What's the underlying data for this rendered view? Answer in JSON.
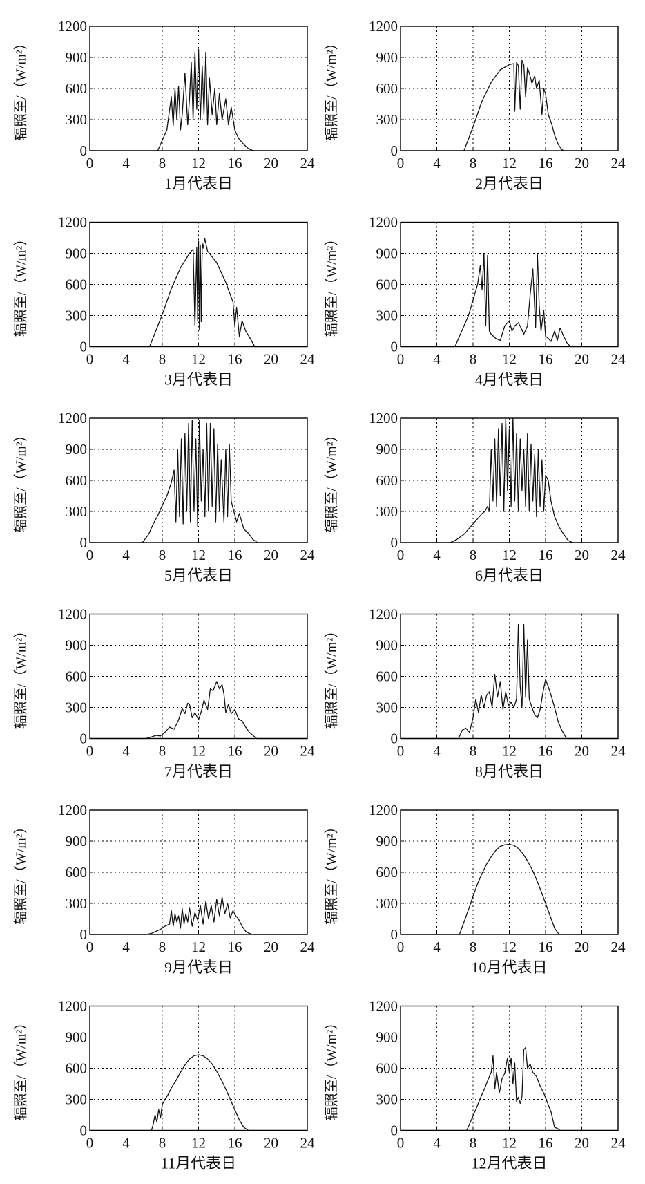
{
  "y_axis_label": "辐照至/（W/m²）",
  "chart_data": [
    {
      "type": "line",
      "caption": "1月代表日",
      "xlim": [
        0,
        24
      ],
      "ylim": [
        0,
        1200
      ],
      "xticks": [
        0,
        4,
        8,
        12,
        16,
        20,
        24
      ],
      "yticks": [
        0,
        300,
        600,
        900,
        1200
      ],
      "grid": true,
      "x": [
        0,
        7.5,
        8,
        8.5,
        9,
        9.2,
        9.4,
        9.6,
        9.8,
        10,
        10.2,
        10.5,
        10.8,
        11,
        11.2,
        11.4,
        11.6,
        11.8,
        12,
        12.2,
        12.4,
        12.6,
        12.8,
        13,
        13.2,
        13.5,
        13.8,
        14,
        14.3,
        14.6,
        15,
        15.3,
        15.6,
        16,
        16.4,
        17,
        17.5,
        18,
        24
      ],
      "y": [
        0,
        0,
        100,
        200,
        520,
        240,
        600,
        300,
        620,
        200,
        350,
        750,
        250,
        500,
        850,
        300,
        950,
        400,
        980,
        300,
        820,
        350,
        950,
        250,
        700,
        350,
        600,
        250,
        550,
        300,
        500,
        250,
        420,
        200,
        120,
        60,
        20,
        0,
        0
      ]
    },
    {
      "type": "line",
      "caption": "2月代表日",
      "xlim": [
        0,
        24
      ],
      "ylim": [
        0,
        1200
      ],
      "xticks": [
        0,
        4,
        8,
        12,
        16,
        20,
        24
      ],
      "yticks": [
        0,
        300,
        600,
        900,
        1200
      ],
      "grid": true,
      "x": [
        0,
        7,
        8,
        9,
        10,
        11,
        12,
        12.5,
        12.6,
        12.8,
        13,
        13.2,
        13.4,
        13.6,
        13.8,
        14,
        14.2,
        14.5,
        14.8,
        15,
        15.3,
        15.6,
        15.8,
        16,
        16.3,
        16.7,
        17,
        17.4,
        17.8,
        18,
        24
      ],
      "y": [
        0,
        0,
        230,
        480,
        660,
        780,
        830,
        840,
        380,
        850,
        820,
        400,
        870,
        830,
        520,
        800,
        750,
        650,
        720,
        600,
        680,
        350,
        600,
        550,
        350,
        250,
        150,
        60,
        10,
        0,
        0
      ]
    },
    {
      "type": "line",
      "caption": "3月代表日",
      "xlim": [
        0,
        24
      ],
      "ylim": [
        0,
        1200
      ],
      "xticks": [
        0,
        4,
        8,
        12,
        16,
        20,
        24
      ],
      "yticks": [
        0,
        300,
        600,
        900,
        1200
      ],
      "grid": true,
      "x": [
        0,
        6.6,
        8,
        9,
        10,
        11,
        11.4,
        11.6,
        11.8,
        11.9,
        12,
        12.1,
        12.2,
        12.3,
        12.4,
        12.5,
        12.7,
        13,
        14,
        15,
        15.8,
        16,
        16.2,
        16.5,
        16.8,
        17.2,
        17.7,
        18.2,
        24
      ],
      "y": [
        0,
        0,
        310,
        560,
        760,
        900,
        940,
        200,
        960,
        250,
        1020,
        160,
        980,
        240,
        1000,
        950,
        1040,
        920,
        810,
        620,
        430,
        200,
        380,
        100,
        250,
        150,
        80,
        0,
        0
      ]
    },
    {
      "type": "line",
      "caption": "4月代表日",
      "xlim": [
        0,
        24
      ],
      "ylim": [
        0,
        1200
      ],
      "xticks": [
        0,
        4,
        8,
        12,
        16,
        20,
        24
      ],
      "yticks": [
        0,
        300,
        600,
        900,
        1200
      ],
      "grid": true,
      "x": [
        0,
        6,
        6.5,
        7,
        7.5,
        8,
        8.5,
        8.8,
        9,
        9.2,
        9.4,
        9.6,
        9.8,
        10,
        10.5,
        11,
        11.5,
        12,
        12.3,
        12.6,
        13,
        13.3,
        13.6,
        14,
        14.3,
        14.6,
        14.9,
        15.1,
        15.3,
        15.5,
        15.8,
        16,
        16.3,
        16.6,
        17,
        17.3,
        17.6,
        18,
        18.4,
        18.8,
        24
      ],
      "y": [
        0,
        0,
        100,
        200,
        300,
        450,
        600,
        780,
        550,
        900,
        200,
        880,
        150,
        120,
        80,
        60,
        200,
        250,
        150,
        200,
        230,
        180,
        120,
        200,
        500,
        750,
        180,
        900,
        400,
        150,
        350,
        100,
        80,
        50,
        150,
        60,
        180,
        100,
        30,
        0,
        0
      ]
    },
    {
      "type": "line",
      "caption": "5月代表日",
      "xlim": [
        0,
        24
      ],
      "ylim": [
        0,
        1200
      ],
      "xticks": [
        0,
        4,
        8,
        12,
        16,
        20,
        24
      ],
      "yticks": [
        0,
        300,
        600,
        900,
        1200
      ],
      "grid": true,
      "x": [
        0,
        5.8,
        6.5,
        7,
        7.5,
        8,
        8.5,
        9,
        9.3,
        9.5,
        9.7,
        9.9,
        10.1,
        10.3,
        10.5,
        10.7,
        10.9,
        11.1,
        11.3,
        11.5,
        11.7,
        11.9,
        12.1,
        12.3,
        12.5,
        12.7,
        12.9,
        13.1,
        13.3,
        13.5,
        13.7,
        13.9,
        14.1,
        14.3,
        14.5,
        14.8,
        15,
        15.2,
        15.4,
        15.6,
        15.9,
        16.2,
        16.5,
        17,
        17.5,
        18,
        18.5,
        24
      ],
      "y": [
        0,
        0,
        80,
        180,
        260,
        360,
        450,
        580,
        700,
        200,
        900,
        250,
        1000,
        180,
        1050,
        300,
        1150,
        200,
        1180,
        300,
        1000,
        150,
        1180,
        400,
        900,
        250,
        1150,
        300,
        1150,
        350,
        1100,
        200,
        950,
        300,
        800,
        200,
        900,
        250,
        950,
        400,
        300,
        200,
        280,
        130,
        90,
        30,
        0,
        0
      ]
    },
    {
      "type": "line",
      "caption": "6月代表日",
      "xlim": [
        0,
        24
      ],
      "ylim": [
        0,
        1200
      ],
      "xticks": [
        0,
        4,
        8,
        12,
        16,
        20,
        24
      ],
      "yticks": [
        0,
        300,
        600,
        900,
        1200
      ],
      "grid": true,
      "x": [
        0,
        5.5,
        6.2,
        7,
        7.5,
        8,
        8.5,
        9,
        9.3,
        9.6,
        9.8,
        10,
        10.2,
        10.4,
        10.6,
        10.8,
        11,
        11.2,
        11.4,
        11.6,
        11.8,
        12,
        12.2,
        12.4,
        12.6,
        12.8,
        13,
        13.2,
        13.4,
        13.6,
        13.8,
        14,
        14.2,
        14.4,
        14.6,
        14.8,
        15,
        15.2,
        15.4,
        15.6,
        15.8,
        16,
        16.3,
        16.6,
        17,
        17.5,
        18,
        18.5,
        19,
        24
      ],
      "y": [
        0,
        0,
        30,
        80,
        130,
        180,
        230,
        280,
        300,
        350,
        300,
        900,
        400,
        1000,
        350,
        1100,
        450,
        1150,
        300,
        1200,
        500,
        1100,
        350,
        1200,
        400,
        1050,
        300,
        1000,
        500,
        900,
        350,
        1050,
        300,
        950,
        400,
        850,
        250,
        900,
        350,
        800,
        300,
        650,
        600,
        400,
        250,
        150,
        80,
        20,
        0,
        0
      ]
    },
    {
      "type": "line",
      "caption": "7月代表日",
      "xlim": [
        0,
        24
      ],
      "ylim": [
        0,
        1200
      ],
      "xticks": [
        0,
        4,
        8,
        12,
        16,
        20,
        24
      ],
      "yticks": [
        0,
        300,
        600,
        900,
        1200
      ],
      "grid": true,
      "x": [
        0,
        6.2,
        6.8,
        7.3,
        7.8,
        8.3,
        8.8,
        9.3,
        9.8,
        10.2,
        10.5,
        10.8,
        11,
        11.3,
        11.6,
        12,
        12.3,
        12.6,
        13,
        13.3,
        13.6,
        14,
        14.3,
        14.6,
        14.8,
        15,
        15.3,
        15.6,
        16,
        16.4,
        16.8,
        17.2,
        17.6,
        18,
        18.4,
        24
      ],
      "y": [
        0,
        0,
        15,
        30,
        25,
        60,
        110,
        90,
        180,
        290,
        240,
        340,
        330,
        200,
        250,
        180,
        260,
        370,
        280,
        480,
        460,
        550,
        480,
        520,
        430,
        250,
        330,
        240,
        280,
        190,
        170,
        110,
        60,
        30,
        0,
        0
      ]
    },
    {
      "type": "line",
      "caption": "8月代表日",
      "xlim": [
        0,
        24
      ],
      "ylim": [
        0,
        1200
      ],
      "xticks": [
        0,
        4,
        8,
        12,
        16,
        20,
        24
      ],
      "yticks": [
        0,
        300,
        600,
        900,
        1200
      ],
      "grid": true,
      "x": [
        0,
        6.4,
        6.8,
        7.2,
        7.6,
        8,
        8.3,
        8.6,
        8.9,
        9.2,
        9.5,
        9.8,
        10.1,
        10.4,
        10.7,
        11,
        11.3,
        11.6,
        11.9,
        12.2,
        12.5,
        12.8,
        13,
        13.2,
        13.4,
        13.6,
        13.8,
        14,
        14.2,
        14.5,
        14.8,
        15.1,
        15.4,
        15.7,
        16,
        16.3,
        16.6,
        17,
        17.4,
        17.8,
        18.3,
        24
      ],
      "y": [
        0,
        0,
        80,
        100,
        60,
        200,
        380,
        250,
        420,
        300,
        420,
        450,
        300,
        620,
        400,
        550,
        280,
        450,
        320,
        350,
        300,
        380,
        1100,
        500,
        300,
        1100,
        400,
        950,
        380,
        300,
        230,
        200,
        280,
        440,
        570,
        500,
        420,
        300,
        160,
        80,
        0,
        0
      ]
    },
    {
      "type": "line",
      "caption": "9月代表日",
      "xlim": [
        0,
        24
      ],
      "ylim": [
        0,
        1200
      ],
      "xticks": [
        0,
        4,
        8,
        12,
        16,
        20,
        24
      ],
      "yticks": [
        0,
        300,
        600,
        900,
        1200
      ],
      "grid": true,
      "x": [
        0,
        6.2,
        6.8,
        7.3,
        7.8,
        8.3,
        8.8,
        9,
        9.2,
        9.4,
        9.6,
        9.8,
        10,
        10.2,
        10.4,
        10.6,
        10.8,
        11,
        11.3,
        11.6,
        11.9,
        12.2,
        12.5,
        12.8,
        13.1,
        13.4,
        13.7,
        14,
        14.3,
        14.6,
        14.9,
        15.2,
        15.5,
        15.8,
        16.1,
        16.4,
        16.8,
        17.2,
        17.6,
        18,
        24
      ],
      "y": [
        0,
        0,
        10,
        30,
        50,
        80,
        100,
        230,
        80,
        200,
        120,
        180,
        60,
        250,
        100,
        200,
        120,
        260,
        80,
        210,
        140,
        280,
        100,
        320,
        150,
        280,
        120,
        340,
        180,
        360,
        200,
        300,
        160,
        230,
        180,
        150,
        80,
        30,
        10,
        0,
        0
      ]
    },
    {
      "type": "line",
      "caption": "10月代表日",
      "xlim": [
        0,
        24
      ],
      "ylim": [
        0,
        1200
      ],
      "xticks": [
        0,
        4,
        8,
        12,
        16,
        20,
        24
      ],
      "yticks": [
        0,
        300,
        600,
        900,
        1200
      ],
      "grid": true,
      "x": [
        0,
        6.5,
        7,
        7.5,
        8,
        8.5,
        9,
        9.5,
        10,
        10.5,
        11,
        11.5,
        12,
        12.5,
        13,
        13.5,
        14,
        14.5,
        15,
        15.5,
        16,
        16.5,
        17,
        17.5,
        24
      ],
      "y": [
        0,
        0,
        120,
        240,
        370,
        490,
        590,
        680,
        750,
        810,
        850,
        865,
        870,
        860,
        830,
        780,
        710,
        630,
        530,
        420,
        300,
        180,
        60,
        0,
        0
      ]
    },
    {
      "type": "line",
      "caption": "11月代表日",
      "xlim": [
        0,
        24
      ],
      "ylim": [
        0,
        1200
      ],
      "xticks": [
        0,
        4,
        8,
        12,
        16,
        20,
        24
      ],
      "yticks": [
        0,
        300,
        600,
        900,
        1200
      ],
      "grid": true,
      "x": [
        0,
        6.8,
        7,
        7.2,
        7.4,
        7.6,
        7.8,
        8,
        8.3,
        8.6,
        9,
        9.5,
        10,
        10.5,
        11,
        11.5,
        12,
        12.5,
        13,
        13.5,
        14,
        14.5,
        15,
        15.5,
        16,
        16.5,
        17,
        17.5,
        24
      ],
      "y": [
        0,
        0,
        60,
        150,
        80,
        200,
        120,
        250,
        300,
        340,
        410,
        480,
        560,
        630,
        690,
        720,
        730,
        720,
        690,
        640,
        570,
        490,
        400,
        300,
        200,
        100,
        30,
        0,
        0
      ]
    },
    {
      "type": "line",
      "caption": "12月代表日",
      "xlim": [
        0,
        24
      ],
      "ylim": [
        0,
        1200
      ],
      "xticks": [
        0,
        4,
        8,
        12,
        16,
        20,
        24
      ],
      "yticks": [
        0,
        300,
        600,
        900,
        1200
      ],
      "grid": true,
      "x": [
        0,
        7.3,
        7.8,
        8.3,
        8.8,
        9.3,
        9.7,
        10,
        10.2,
        10.4,
        10.6,
        10.9,
        11.2,
        11.5,
        11.8,
        12,
        12.2,
        12.4,
        12.6,
        12.8,
        13,
        13.2,
        13.4,
        13.6,
        13.8,
        14,
        14.3,
        14.6,
        15,
        15.4,
        15.8,
        16.2,
        16.6,
        17,
        17.3,
        17.6,
        24
      ],
      "y": [
        0,
        0,
        100,
        200,
        310,
        410,
        500,
        560,
        720,
        400,
        560,
        360,
        500,
        550,
        700,
        560,
        700,
        450,
        650,
        280,
        320,
        260,
        330,
        780,
        800,
        600,
        640,
        560,
        520,
        430,
        360,
        270,
        180,
        30,
        20,
        0,
        0
      ]
    }
  ]
}
